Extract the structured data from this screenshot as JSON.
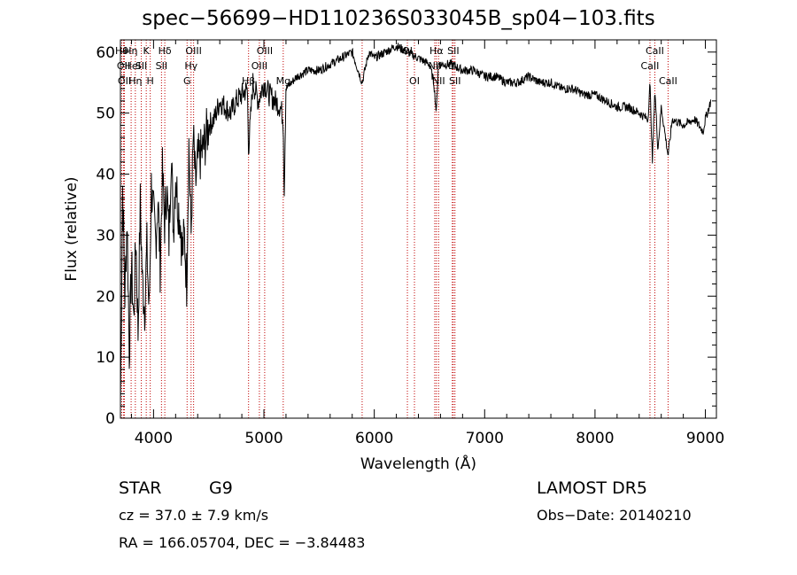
{
  "chart_data": {
    "type": "line",
    "title": "spec−56699−HD110236S033045B_sp04−103.fits",
    "xlabel": "Wavelength (Å)",
    "ylabel": "Flux (relative)",
    "xlim": [
      3700,
      9100
    ],
    "ylim": [
      0,
      62
    ],
    "xticks": [
      4000,
      5000,
      6000,
      7000,
      8000,
      9000
    ],
    "yticks": [
      0,
      10,
      20,
      30,
      40,
      50,
      60
    ],
    "series": [
      {
        "x": [
          3700,
          3720,
          3740,
          3760,
          3780,
          3800,
          3820,
          3840,
          3860,
          3880,
          3900,
          3920,
          3940,
          3960,
          3980,
          4000,
          4020,
          4040,
          4060,
          4080,
          4100,
          4120,
          4140,
          4160,
          4180,
          4200,
          4220,
          4240,
          4260,
          4280,
          4300,
          4320,
          4340,
          4360,
          4380,
          4400,
          4450,
          4500,
          4550,
          4600,
          4650,
          4700,
          4750,
          4800,
          4850,
          4861,
          4900,
          4950,
          5000,
          5050,
          5100,
          5150,
          5175,
          5183,
          5200,
          5250,
          5300,
          5400,
          5500,
          5600,
          5700,
          5800,
          5890,
          5950,
          6000,
          6100,
          6200,
          6300,
          6400,
          6500,
          6540,
          6563,
          6580,
          6600,
          6700,
          6800,
          6900,
          7000,
          7100,
          7200,
          7300,
          7400,
          7500,
          7600,
          7700,
          7800,
          7900,
          8000,
          8100,
          8200,
          8300,
          8400,
          8480,
          8498,
          8520,
          8542,
          8570,
          8600,
          8662,
          8700,
          8800,
          8900,
          8980,
          9000,
          9050
        ],
        "y": [
          2,
          38,
          20,
          33,
          11,
          25,
          16,
          30,
          14,
          35,
          22,
          18,
          28,
          17,
          38,
          33,
          29,
          36,
          25,
          40,
          32,
          38,
          29,
          44,
          31,
          40,
          35,
          33,
          27,
          30,
          22,
          45,
          30,
          46,
          38,
          42,
          44,
          48,
          49,
          52,
          51,
          50,
          52,
          53,
          54,
          44,
          55,
          52,
          55,
          53,
          52,
          51,
          49,
          36,
          54,
          55,
          56,
          57,
          57,
          58,
          59,
          60,
          55,
          60,
          59,
          60,
          61,
          60,
          59,
          58,
          55,
          50,
          58,
          58,
          58,
          57,
          57,
          56,
          56,
          55,
          55,
          56,
          55,
          55,
          54,
          54,
          53,
          53,
          52,
          51,
          51,
          50,
          49,
          55,
          42,
          54,
          44,
          51,
          43,
          49,
          48,
          49,
          47,
          49,
          52
        ]
      }
    ],
    "line_labels": [
      {
        "x": 3712,
        "row": 0,
        "text": "Hθ"
      },
      {
        "x": 3728,
        "row": 1,
        "text": "OII"
      },
      {
        "x": 3736,
        "row": 2,
        "text": "OII"
      },
      {
        "x": 3795,
        "row": 0,
        "text": "Hη"
      },
      {
        "x": 3810,
        "row": 1,
        "text": "HeI"
      },
      {
        "x": 3835,
        "row": 2,
        "text": "Hη"
      },
      {
        "x": 3934,
        "row": 0,
        "text": "K"
      },
      {
        "x": 3970,
        "row": 2,
        "text": "H"
      },
      {
        "x": 3889,
        "row": 1,
        "text": "SII"
      },
      {
        "x": 4102,
        "row": 0,
        "text": "Hδ"
      },
      {
        "x": 4072,
        "row": 1,
        "text": "SII"
      },
      {
        "x": 4363,
        "row": 0,
        "text": "OIII"
      },
      {
        "x": 4340,
        "row": 1,
        "text": "Hγ"
      },
      {
        "x": 4304,
        "row": 2,
        "text": "G"
      },
      {
        "x": 5007,
        "row": 0,
        "text": "OIII"
      },
      {
        "x": 4959,
        "row": 1,
        "text": "OIII"
      },
      {
        "x": 4861,
        "row": 2,
        "text": "Hβ"
      },
      {
        "x": 5175,
        "row": 2,
        "text": "Mg"
      },
      {
        "x": 6300,
        "row": 0,
        "text": "OI"
      },
      {
        "x": 6364,
        "row": 2,
        "text": "OI"
      },
      {
        "x": 6563,
        "row": 0,
        "text": "Hα"
      },
      {
        "x": 6583,
        "row": 2,
        "text": "NII"
      },
      {
        "x": 6548,
        "row": 1,
        "text": "NII"
      },
      {
        "x": 6716,
        "row": 0,
        "text": "SII"
      },
      {
        "x": 6707,
        "row": 1,
        "text": "Li"
      },
      {
        "x": 6731,
        "row": 2,
        "text": "SII"
      },
      {
        "x": 8542,
        "row": 0,
        "text": "CaII"
      },
      {
        "x": 8498,
        "row": 1,
        "text": "CaII"
      },
      {
        "x": 8662,
        "row": 2,
        "text": "CaII"
      }
    ],
    "marker_lines": [
      3712,
      3728,
      3736,
      3797,
      3835,
      3889,
      3934,
      3970,
      4072,
      4102,
      4304,
      4340,
      4363,
      4861,
      4959,
      5007,
      5175,
      5890,
      6300,
      6364,
      6548,
      6563,
      6583,
      6707,
      6716,
      6731,
      8498,
      8542,
      8662
    ],
    "colors": {
      "line": "#000000",
      "marker": "#c00000"
    }
  },
  "info": {
    "class_label": "STAR",
    "subclass": "G9",
    "survey": "LAMOST  DR5",
    "cz": "cz = 37.0 ± 7.9 km/s",
    "obs_date": "Obs−Date: 20140210",
    "radec": "RA = 166.05704, DEC =  −3.84483"
  }
}
